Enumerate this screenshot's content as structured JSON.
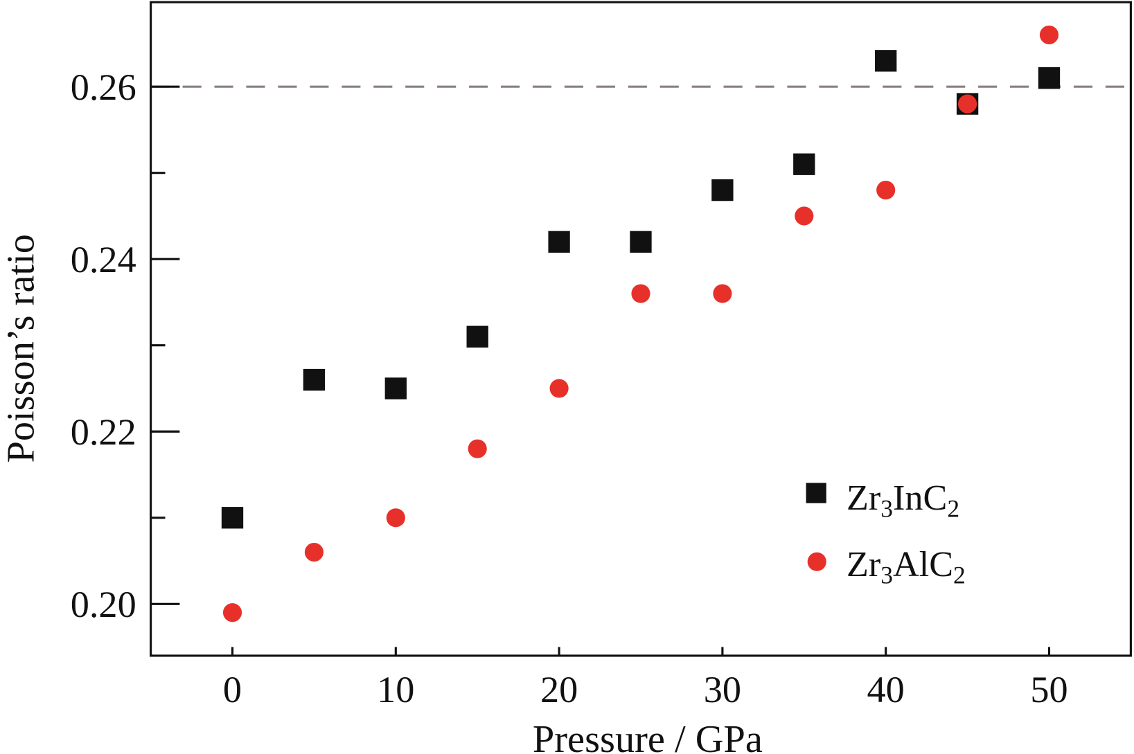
{
  "chart_data": {
    "type": "scatter",
    "title": "",
    "xlabel": "Pressure / GPa",
    "ylabel": "Poisson’s ratio",
    "xlim": [
      -5,
      55
    ],
    "ylim": [
      0.194,
      0.2698
    ],
    "xticks": [
      0,
      10,
      20,
      30,
      40,
      50
    ],
    "xtick_labels": [
      "0",
      "10",
      "20",
      "30",
      "40",
      "50"
    ],
    "yticks": [
      0.2,
      0.22,
      0.24,
      0.26
    ],
    "ytick_labels": [
      "0.20",
      "0.22",
      "0.24",
      "0.26"
    ],
    "yminor_ticks": [
      0.21,
      0.23,
      0.25
    ],
    "grid": false,
    "reference_line": {
      "y": 0.26,
      "style": "dashed",
      "color": "#8a8080"
    },
    "legend_position": "bottom-right",
    "series": [
      {
        "name": "Zr3InC2",
        "label_parts": {
          "a": "Zr",
          "s1": "3",
          "b": "InC",
          "s2": "2"
        },
        "marker": "square",
        "color": "#111111",
        "x": [
          0,
          5,
          10,
          15,
          20,
          25,
          30,
          35,
          40,
          45,
          50
        ],
        "y": [
          0.21,
          0.226,
          0.225,
          0.231,
          0.242,
          0.242,
          0.248,
          0.251,
          0.263,
          0.258,
          0.261
        ]
      },
      {
        "name": "Zr3AlC2",
        "label_parts": {
          "a": "Zr",
          "s1": "3",
          "b": "AlC",
          "s2": "2"
        },
        "marker": "circle",
        "color": "#e8302a",
        "x": [
          0,
          5,
          10,
          15,
          20,
          25,
          30,
          35,
          40,
          45,
          50
        ],
        "y": [
          0.199,
          0.206,
          0.21,
          0.218,
          0.225,
          0.236,
          0.236,
          0.245,
          0.248,
          0.258,
          0.266
        ]
      }
    ]
  }
}
